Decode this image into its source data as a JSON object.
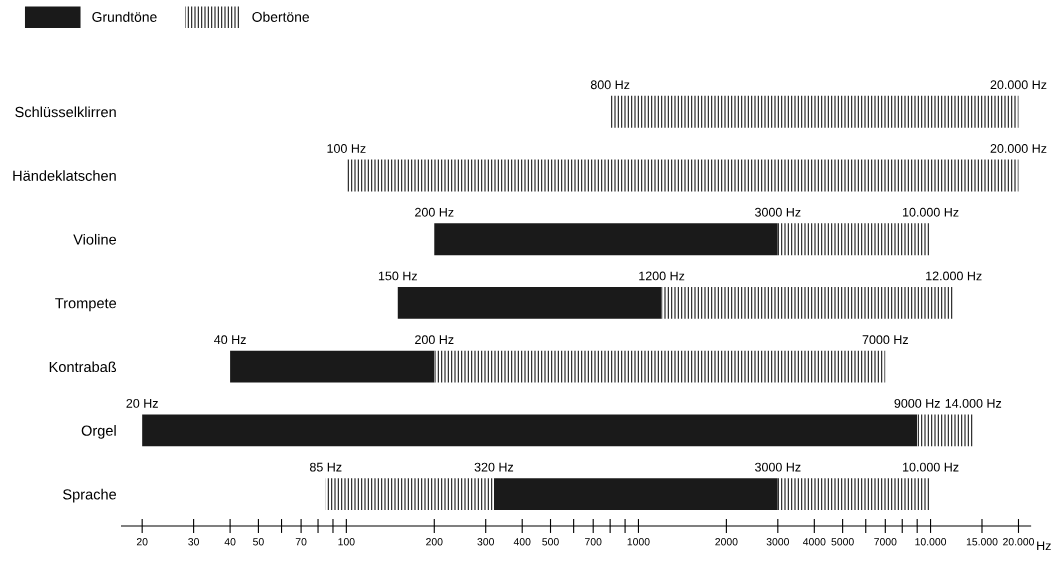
{
  "chart_data": {
    "type": "bar",
    "orientation": "horizontal",
    "xlabel": "Hz",
    "legend": "top left",
    "grid": false,
    "categories": [
      "Schlüsselklirren",
      "Händeklatschen",
      "Violine",
      "Trompete",
      "Kontrabaß",
      "Orgel",
      "Sprache"
    ],
    "series": [
      {
        "name": "Grundtöne",
        "color": "#1a1a1a",
        "base": [
          null,
          null,
          200,
          150,
          40,
          20,
          320
        ],
        "values": [
          null,
          null,
          2800,
          1050,
          160,
          8980,
          2680
        ]
      },
      {
        "name": "Obertöne",
        "color": "#1a1a1a",
        "base": [
          800,
          100,
          3000,
          1200,
          200,
          9000,
          3000
        ],
        "values": [
          19200,
          19900,
          7000,
          10800,
          6800,
          5000,
          7000
        ]
      },
      {
        "color": "#1a1a1a",
        "base": [
          null,
          null,
          null,
          null,
          null,
          null,
          85
        ],
        "values": [
          null,
          null,
          null,
          null,
          null,
          null,
          235
        ]
      }
    ],
    "log": "x",
    "xlim": [
      17,
      22000
    ],
    "xticks": [
      20,
      30,
      40,
      50,
      {
        "value": 60,
        "label": null
      },
      70,
      {
        "value": 80,
        "label": null
      },
      {
        "value": 90,
        "label": null
      },
      100,
      200,
      300,
      400,
      500,
      {
        "value": 600,
        "label": null
      },
      700,
      {
        "value": 800,
        "label": null
      },
      {
        "value": 900,
        "label": null
      },
      1000,
      2000,
      3000,
      4000,
      5000,
      {
        "value": 6000,
        "label": null
      },
      7000,
      {
        "value": 8000,
        "label": null
      },
      {
        "value": 9000,
        "label": null
      },
      {
        "value": 10000,
        "label": "10.000"
      },
      {
        "value": 15000,
        "label": "15.000"
      },
      {
        "value": 20000,
        "label": "20.000"
      }
    ],
    "annotations": [
      {
        "text": "800 Hz",
        "x": 800,
        "y": "Schlüsselklirren"
      },
      {
        "text": "20.000 Hz",
        "x": 20000,
        "y": "Schlüsselklirren"
      },
      {
        "text": "100 Hz",
        "x": 100,
        "y": "Händeklatschen"
      },
      {
        "text": "20.000 Hz",
        "x": 20000,
        "y": "Händeklatschen"
      },
      {
        "text": "200 Hz",
        "x": 200,
        "y": "Violine"
      },
      {
        "text": "3000 Hz",
        "x": 3000,
        "y": "Violine"
      },
      {
        "text": "10.000 Hz",
        "x": 10000,
        "y": "Violine"
      },
      {
        "text": "150 Hz",
        "x": 150,
        "y": "Trompete"
      },
      {
        "text": "1200 Hz",
        "x": 1200,
        "y": "Trompete"
      },
      {
        "text": "12.000 Hz",
        "x": 12000,
        "y": "Trompete"
      },
      {
        "text": "40 Hz",
        "x": 40,
        "y": "Kontrabaß"
      },
      {
        "text": "200 Hz",
        "x": 200,
        "y": "Kontrabaß"
      },
      {
        "text": "7000 Hz",
        "x": 7000,
        "y": "Kontrabaß"
      },
      {
        "text": "20 Hz",
        "x": 20,
        "y": "Orgel"
      },
      {
        "text": "9000 Hz",
        "x": 9000,
        "y": "Orgel"
      },
      {
        "text": "14.000 Hz",
        "x": 14000,
        "y": "Orgel"
      },
      {
        "text": "85 Hz",
        "x": 85,
        "y": "Sprache"
      },
      {
        "text": "320 Hz",
        "x": 320,
        "y": "Sprache"
      },
      {
        "text": "3000 Hz",
        "x": 3000,
        "y": "Sprache"
      },
      {
        "text": "10.000 Hz",
        "x": 10000,
        "y": "Sprache"
      }
    ]
  }
}
